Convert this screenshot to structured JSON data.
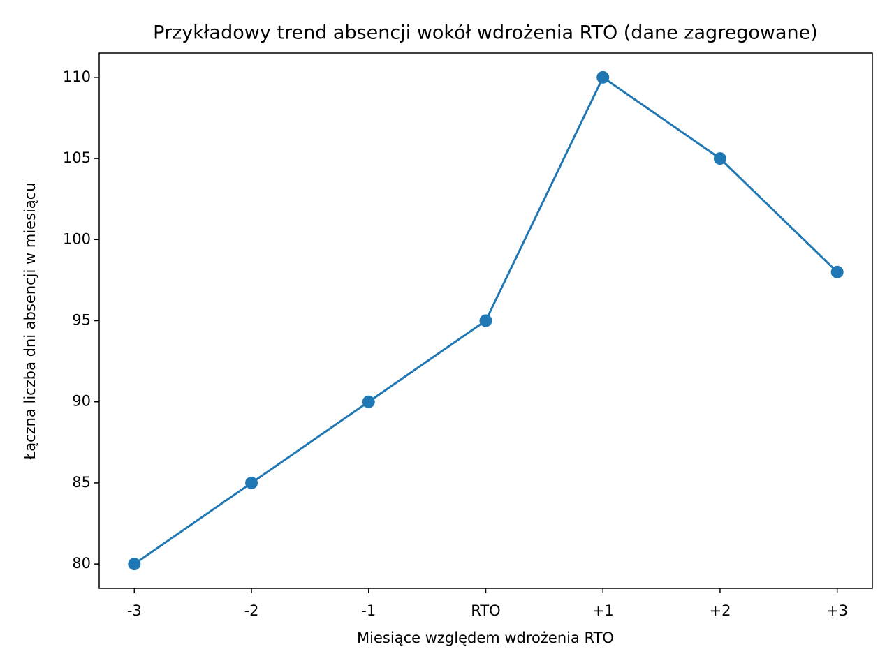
{
  "chart_data": {
    "type": "line",
    "title": "Przykładowy trend absencji wokół wdrożenia RTO (dane zagregowane)",
    "x_label": "Miesiące względem wdrożenia RTO",
    "y_label": "Łączna liczba dni absencji w miesiącu",
    "categories": [
      "-3",
      "-2",
      "-1",
      "RTO",
      "+1",
      "+2",
      "+3"
    ],
    "values": [
      80,
      85,
      90,
      95,
      110,
      105,
      98
    ],
    "color": "#1f77b4",
    "markers": true,
    "ylim": [
      78.5,
      111.5
    ],
    "yticks": [
      80,
      85,
      90,
      95,
      100,
      105,
      110
    ],
    "grid": false
  }
}
